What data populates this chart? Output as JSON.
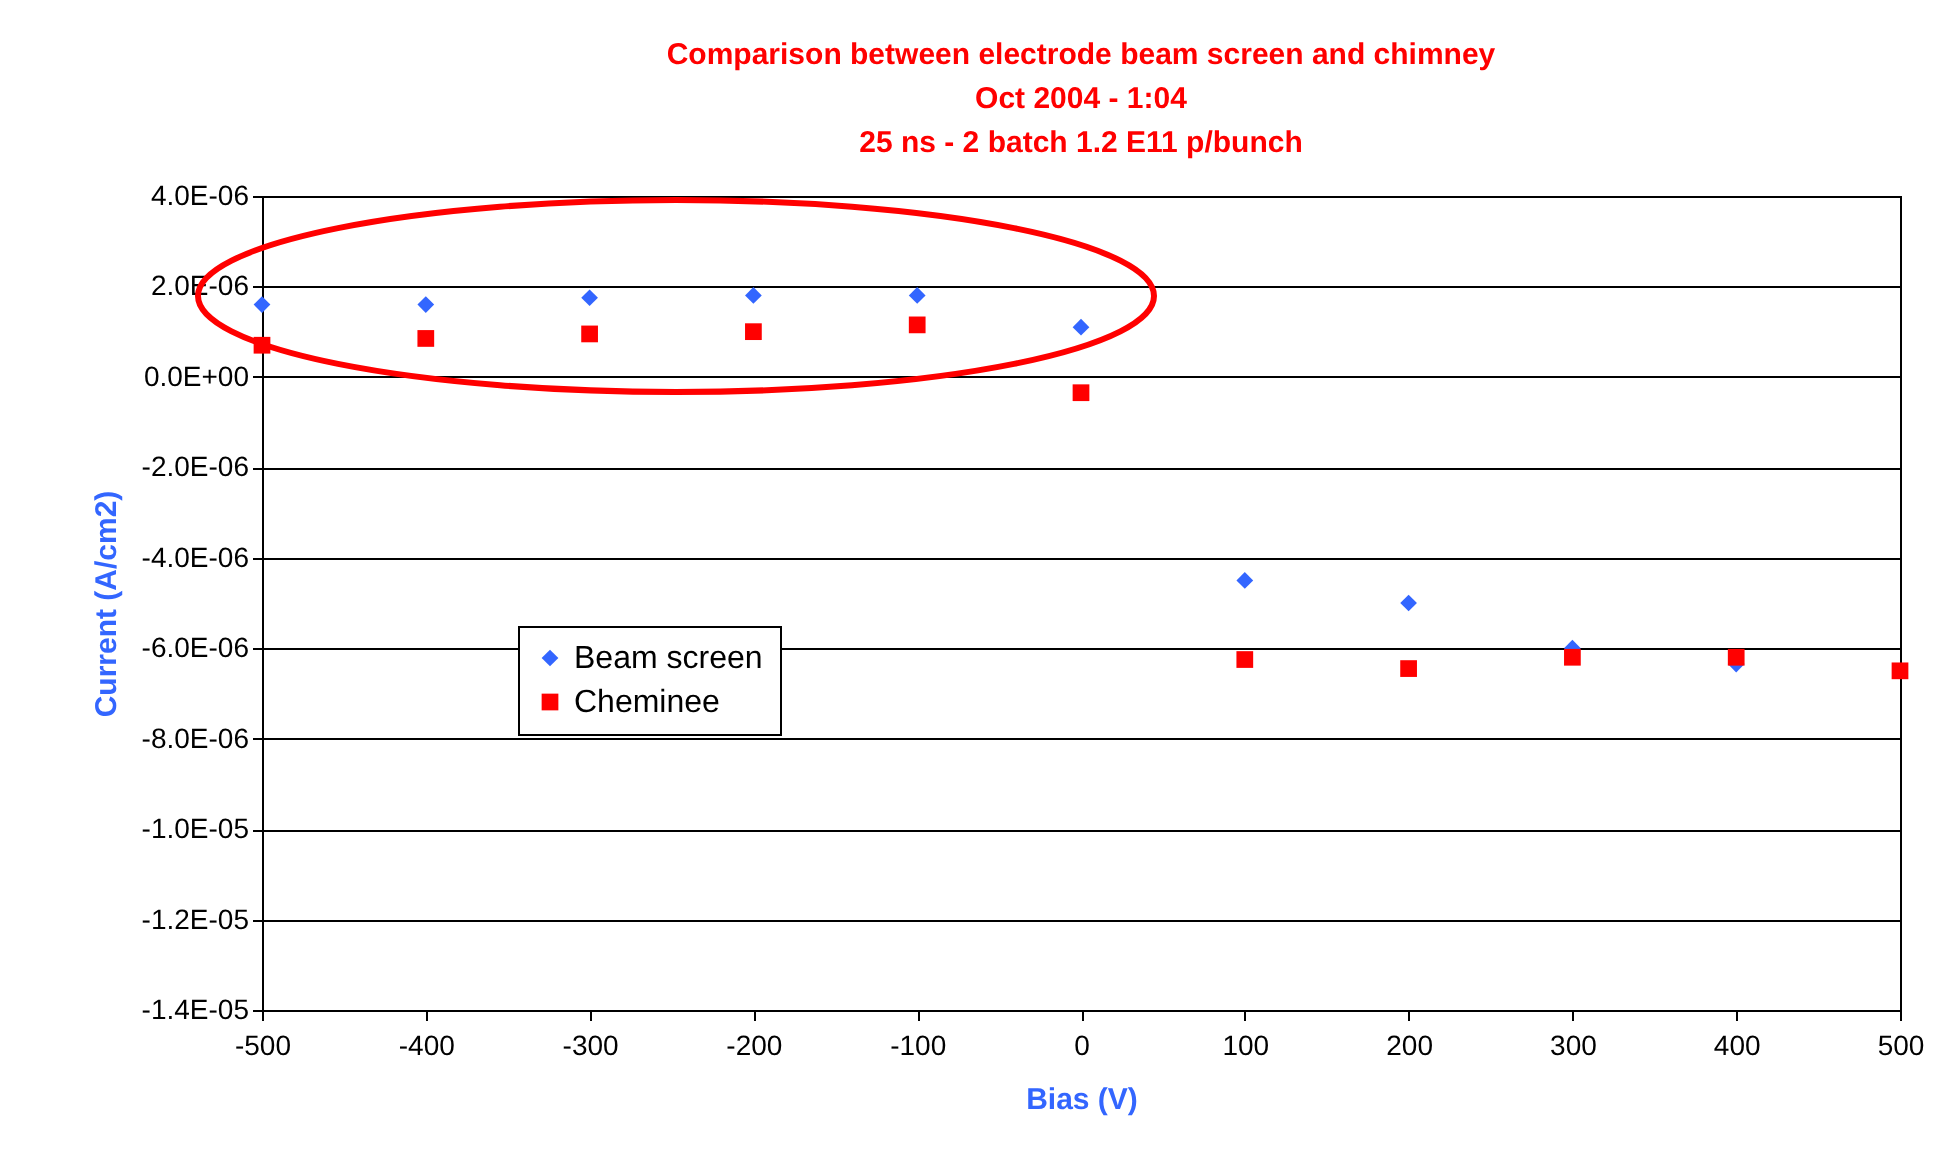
{
  "chart_data": {
    "type": "scatter",
    "title": "Comparison between electrode beam screen and chimney",
    "subtitle": "Oct 2004  - 1:04\n25 ns - 2 batch  1.2 E11 p/bunch",
    "xlabel": "Bias (V)",
    "ylabel": "Current (A/cm2)",
    "x": [
      -500,
      -400,
      -300,
      -200,
      -100,
      0,
      100,
      200,
      300,
      400,
      500
    ],
    "series": [
      {
        "name": "Beam screen",
        "color": "#3366ff",
        "marker": "diamond",
        "values": [
          1.6e-06,
          1.6e-06,
          1.75e-06,
          1.8e-06,
          1.8e-06,
          1.1e-06,
          -4.5e-06,
          -5e-06,
          -6e-06,
          -6.35e-06,
          null
        ]
      },
      {
        "name": "Cheminee",
        "color": "#ff0000",
        "marker": "square",
        "values": [
          7e-07,
          8.5e-07,
          9.5e-07,
          1e-06,
          1.15e-06,
          -3.5e-07,
          -6.25e-06,
          -6.45e-06,
          -6.2e-06,
          -6.2e-06,
          -6.5e-06
        ]
      }
    ],
    "xlim": [
      -500,
      500
    ],
    "xticks": [
      -500,
      -400,
      -300,
      -200,
      -100,
      0,
      100,
      200,
      300,
      400,
      500
    ],
    "ylim": [
      -1.4e-05,
      4e-06
    ],
    "yticks": [
      {
        "value": 4e-06,
        "label": "4.0E-06"
      },
      {
        "value": 2e-06,
        "label": "2.0E-06"
      },
      {
        "value": 0,
        "label": "0.0E+00"
      },
      {
        "value": -2e-06,
        "label": "-2.0E-06"
      },
      {
        "value": -4e-06,
        "label": "-4.0E-06"
      },
      {
        "value": -6e-06,
        "label": "-6.0E-06"
      },
      {
        "value": -8e-06,
        "label": "-8.0E-06"
      },
      {
        "value": -1e-05,
        "label": "-1.0E-05"
      },
      {
        "value": -1.2e-05,
        "label": "-1.2E-05"
      },
      {
        "value": -1.4e-05,
        "label": "-1.4E-05"
      }
    ],
    "grid": "y",
    "legend": "left"
  }
}
